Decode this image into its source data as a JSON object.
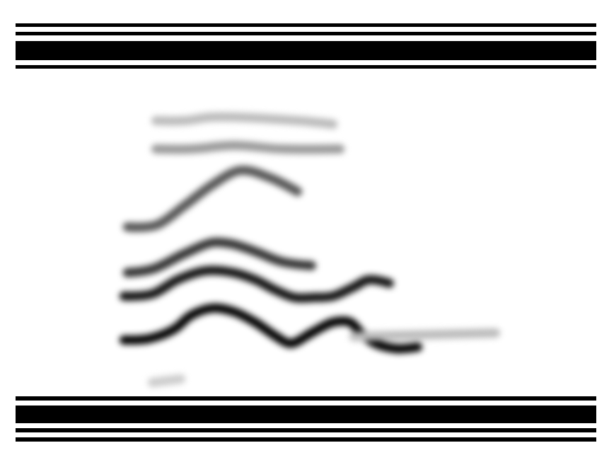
{
  "chart_data": {
    "type": "line",
    "xlim": [
      0,
      100
    ],
    "ylim": [
      0,
      100
    ],
    "tick_labels": false,
    "grid": false,
    "series": [
      {
        "color": "#000000",
        "x": [
          18.6,
          22.9,
          27.2,
          30.2,
          33.9,
          37.5,
          41.2,
          44.8,
          47.3,
          50.9,
          54.6,
          57.6,
          59.4,
          61.9,
          65.5,
          69.2
        ],
        "values": [
          16.5,
          16.9,
          19.8,
          24.2,
          26.4,
          25.3,
          22.0,
          17.6,
          15.4,
          18.7,
          22.0,
          22.0,
          18.7,
          15.4,
          13.8,
          14.3
        ]
      },
      {
        "color": "#111111",
        "x": [
          18.6,
          23.5,
          27.8,
          32.6,
          37.5,
          41.2,
          44.8,
          47.9,
          51.5,
          54.6,
          58.2,
          60.7,
          64.3
        ],
        "values": [
          30.1,
          30.8,
          35.2,
          38.0,
          37.4,
          35.2,
          31.9,
          29.7,
          29.7,
          30.1,
          33.0,
          35.2,
          34.1
        ]
      },
      {
        "color": "#333333",
        "x": [
          19.2,
          23.5,
          29.0,
          33.9,
          37.5,
          41.2,
          46.0,
          50.9
        ],
        "values": [
          37.4,
          38.5,
          43.3,
          46.8,
          46.2,
          44.0,
          40.7,
          39.6
        ]
      },
      {
        "color": "#555555",
        "x": [
          19.2,
          24.1,
          29.0,
          33.9,
          38.7,
          43.6,
          48.5
        ],
        "values": [
          51.6,
          52.1,
          58.2,
          64.8,
          69.2,
          67.0,
          62.6
        ]
      },
      {
        "color": "#999999",
        "x": [
          24.1,
          30.2,
          37.5,
          46.0,
          55.8
        ],
        "values": [
          75.8,
          75.8,
          76.9,
          75.8,
          75.8
        ]
      },
      {
        "color": "#bbbbbb",
        "x": [
          24.1,
          29.0,
          33.9,
          48.5,
          54.6
        ],
        "values": [
          84.6,
          84.6,
          85.7,
          84.6,
          83.5
        ]
      },
      {
        "color": "#bbbbbb",
        "x": [
          58.2,
          82.6
        ],
        "values": [
          17.6,
          18.7
        ]
      },
      {
        "color": "#cccccc",
        "x": [
          23.5,
          28.4
        ],
        "values": [
          3.3,
          4.4
        ]
      }
    ]
  }
}
